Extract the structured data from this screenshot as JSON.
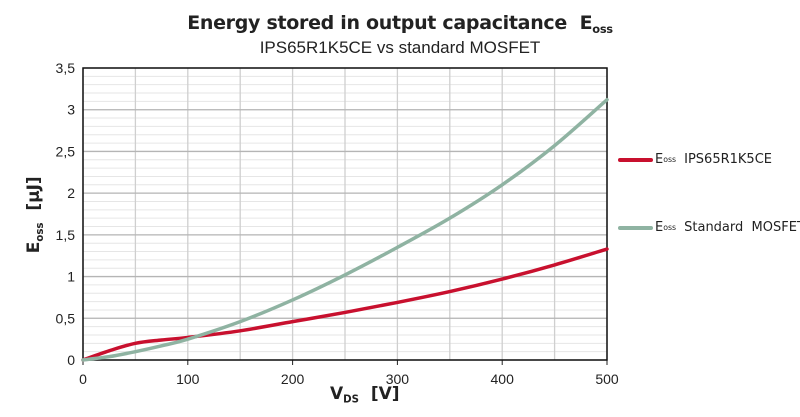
{
  "chart_data": {
    "type": "line",
    "title": "Energy stored in output capacitance",
    "title_symbol": "E",
    "title_symbol_sub": "oss",
    "subtitle": "IPS65R1K5CE vs standard MOSFET",
    "xlabel": {
      "main": "V",
      "sub": "DS",
      "unit": "[V]"
    },
    "ylabel": {
      "main": "E",
      "sub": "oss",
      "unit": "[µJ]"
    },
    "xlim": [
      0,
      500
    ],
    "ylim": [
      0,
      3.5
    ],
    "xticks": [
      0,
      100,
      200,
      300,
      400,
      500
    ],
    "xtick_labels": [
      "0",
      "100",
      "200",
      "300",
      "400",
      "500"
    ],
    "yticks": [
      0,
      0.5,
      1,
      1.5,
      2,
      2.5,
      3,
      3.5
    ],
    "ytick_labels": [
      "0",
      "0,5",
      "1",
      "1,5",
      "2",
      "2,5",
      "3",
      "3,5"
    ],
    "grid": true,
    "legend_position": "right",
    "x": [
      0,
      25,
      50,
      75,
      100,
      150,
      200,
      250,
      300,
      350,
      400,
      450,
      500
    ],
    "series": [
      {
        "name": "IPS65R1K5CE",
        "prefix": "E",
        "prefix_sub": "oss",
        "color": "#c8102e",
        "values": [
          0,
          0.11,
          0.2,
          0.24,
          0.27,
          0.35,
          0.46,
          0.57,
          0.69,
          0.82,
          0.97,
          1.14,
          1.33
        ]
      },
      {
        "name": "Standard  MOSFET",
        "prefix": "E",
        "prefix_sub": "oss",
        "color": "#8fb3a2",
        "values": [
          0,
          0.04,
          0.1,
          0.17,
          0.25,
          0.46,
          0.72,
          1.02,
          1.35,
          1.7,
          2.1,
          2.57,
          3.12
        ]
      }
    ]
  }
}
